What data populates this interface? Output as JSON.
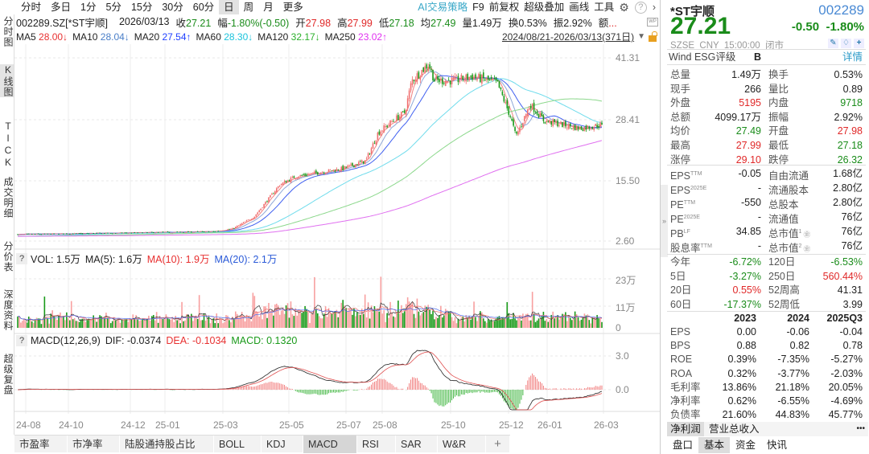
{
  "toolbar": {
    "period_tabs": [
      "分时",
      "多日",
      "1分",
      "5分",
      "15分",
      "30分",
      "60分",
      "日",
      "周",
      "月",
      "更多"
    ],
    "active_tab": "日",
    "ai_strategy": "AI交易策略",
    "f9": "F9",
    "adjust": "前复权",
    "overlay": "超级叠加",
    "draw": "画线",
    "tools": "工具"
  },
  "left_tabs": [
    "分时图",
    "K线图",
    "TICK",
    "成交明细",
    "分价表",
    "深度资料",
    "超级复盘"
  ],
  "left_tabs_active": "K线图",
  "info": {
    "code": "002289.SZ[*ST宇顺]",
    "date": "2026/03/13",
    "items": [
      {
        "label": "收",
        "value": "27.21",
        "color": "green"
      },
      {
        "label": "幅",
        "value": "-1.80%(-0.50)",
        "color": "green"
      },
      {
        "label": "开",
        "value": "27.98",
        "color": "red"
      },
      {
        "label": "高",
        "value": "27.99",
        "color": "red"
      },
      {
        "label": "低",
        "value": "27.18",
        "color": "green"
      },
      {
        "label": "均",
        "value": "27.49",
        "color": "green"
      },
      {
        "label": "量",
        "value": "1.49万",
        "color": ""
      },
      {
        "label": "换",
        "value": "0.53%",
        "color": ""
      },
      {
        "label": "振",
        "value": "2.92%",
        "color": ""
      },
      {
        "label": "额",
        "value": "...",
        "color": "red"
      }
    ]
  },
  "ma": [
    {
      "label": "MA5",
      "value": "28.00↓",
      "color": "#e83030"
    },
    {
      "label": "MA10",
      "value": "28.04↓",
      "color": "#4a7fc8"
    },
    {
      "label": "MA20",
      "value": "27.54↑",
      "color": "#1f3fff"
    },
    {
      "label": "MA60",
      "value": "28.30↓",
      "color": "#1cc4dc"
    },
    {
      "label": "MA120",
      "value": "32.17↓",
      "color": "#2ab02a"
    },
    {
      "label": "MA250",
      "value": "23.02↑",
      "color": "#e030f0"
    }
  ],
  "date_range": "2024/08/21-2026/03/13(371日)",
  "volume_header": {
    "help": "?",
    "items": [
      {
        "text": "VOL: 1.5万",
        "color": "#222"
      },
      {
        "text": "MA(5): 1.6万",
        "color": "#222"
      },
      {
        "text": "MA(10): 1.9万",
        "color": "#e83030"
      },
      {
        "text": "MA(20): 2.1万",
        "color": "#2a5ad8"
      }
    ]
  },
  "macd_header": {
    "help": "?",
    "items": [
      {
        "text": "MACD(12,26,9)",
        "color": "#222"
      },
      {
        "text": "DIF: -0.0374",
        "color": "#222"
      },
      {
        "text": "DEA: -0.1034",
        "color": "#e83030"
      },
      {
        "text": "MACD: 0.1320",
        "color": "#1a9a1a"
      }
    ]
  },
  "chart_data": {
    "type": "candlestick",
    "price_ticks": [
      "41.31",
      "28.41",
      "15.50",
      "2.60"
    ],
    "price_range": [
      2.6,
      41.31
    ],
    "volume_ticks": [
      "23万",
      "11万",
      "0"
    ],
    "macd_ticks": [
      "3.0",
      "0.0"
    ],
    "x_labels": [
      "24-08",
      "24-10",
      "24-12",
      "25-01",
      "25-03",
      "25-05",
      "25-07",
      "25-08",
      "25-10",
      "25-12",
      "26-01",
      "26-03"
    ],
    "price_path": [
      [
        "2024-08-21",
        4.0
      ],
      [
        "2024-12-01",
        4.3
      ],
      [
        "2025-03-01",
        4.6
      ],
      [
        "2025-03-20",
        5.2
      ],
      [
        "2025-04-10",
        7.7
      ],
      [
        "2025-05-05",
        14.5
      ],
      [
        "2025-05-20",
        16.2
      ],
      [
        "2025-06-10",
        17.0
      ],
      [
        "2025-07-05",
        17.9
      ],
      [
        "2025-07-25",
        19.6
      ],
      [
        "2025-08-05",
        25.5
      ],
      [
        "2025-08-20",
        28.0
      ],
      [
        "2025-09-01",
        29.8
      ],
      [
        "2025-09-08",
        36.5
      ],
      [
        "2025-09-25",
        40.0
      ],
      [
        "2025-10-01",
        36.5
      ],
      [
        "2025-10-20",
        36.5
      ],
      [
        "2025-11-05",
        37.4
      ],
      [
        "2025-11-28",
        36.0
      ],
      [
        "2025-12-10",
        28.9
      ],
      [
        "2025-12-15",
        24.7
      ],
      [
        "2025-12-28",
        31.5
      ],
      [
        "2026-01-10",
        28.0
      ],
      [
        "2026-02-15",
        26.4
      ],
      [
        "2026-03-13",
        27.21
      ]
    ],
    "colors": {
      "up": "#f07070",
      "down": "#1a9a1a"
    }
  },
  "bottom_tabs": [
    "市盈率",
    "市净率",
    "陆股通持股占比",
    "BOLL",
    "KDJ",
    "MACD",
    "RSI",
    "SAR",
    "W&R",
    "+"
  ],
  "bottom_tabs_active": "MACD",
  "quote": {
    "name": "*ST宇顺",
    "code": "002289",
    "price": "27.21",
    "change": "-0.50",
    "change_pct": "-1.80%",
    "status": "SZSE  CNY  15:00:00  闭市",
    "esg_label": "Wind ESG评级",
    "esg_value": "B",
    "esg_detail": "详情",
    "stats": [
      [
        "总量",
        "1.49万",
        "",
        "换手",
        "0.53%",
        ""
      ],
      [
        "现手",
        "266",
        "",
        "量比",
        "0.89",
        ""
      ],
      [
        "外盘",
        "5195",
        "red",
        "内盘",
        "9718",
        "green"
      ],
      [
        "总额",
        "4099.17万",
        "",
        "振幅",
        "2.92%",
        ""
      ],
      [
        "均价",
        "27.49",
        "green",
        "开盘",
        "27.98",
        "red"
      ],
      [
        "最高",
        "27.99",
        "red",
        "最低",
        "27.18",
        "green"
      ],
      [
        "涨停",
        "29.10",
        "red",
        "跌停",
        "26.32",
        "green"
      ]
    ],
    "fundamentals": [
      [
        "EPS",
        "TTM",
        "-0.05",
        "自由流通",
        "",
        "1.68亿"
      ],
      [
        "EPS",
        "2025E",
        "-",
        "流通股本",
        "",
        "2.80亿"
      ],
      [
        "PE",
        "TTM",
        "-550",
        "总股本",
        "",
        "2.80亿"
      ],
      [
        "PE",
        "2025E",
        "-",
        "流通值",
        "",
        "76亿"
      ],
      [
        "PB",
        "LF",
        "34.85",
        "总市值",
        "1",
        "76亿"
      ],
      [
        "股息率",
        "TTM",
        "-",
        "总市值",
        "2",
        "76亿"
      ]
    ],
    "returns": [
      [
        "今年",
        "-6.72%",
        "green",
        "120日",
        "-6.53%",
        "green"
      ],
      [
        "5日",
        "-3.27%",
        "green",
        "250日",
        "560.44%",
        "red"
      ],
      [
        "20日",
        "0.55%",
        "red",
        "52周高",
        "41.31",
        ""
      ],
      [
        "60日",
        "-17.37%",
        "green",
        "52周低",
        "3.99",
        ""
      ]
    ],
    "fin_headers": [
      "2023",
      "2024",
      "2025Q3"
    ],
    "fin_rows": [
      [
        "EPS",
        "0.00",
        "-0.06",
        "-0.04"
      ],
      [
        "BPS",
        "0.88",
        "0.82",
        "0.78"
      ],
      [
        "ROE",
        "0.39%",
        "-7.35%",
        "-5.27%"
      ],
      [
        "ROA",
        "0.32%",
        "-3.77%",
        "-2.03%"
      ],
      [
        "毛利率",
        "13.86%",
        "21.18%",
        "20.05%"
      ],
      [
        "净利率",
        "0.62%",
        "-6.55%",
        "-4.69%"
      ],
      [
        "负债率",
        "21.60%",
        "44.83%",
        "45.77%"
      ]
    ],
    "fin_tabs": [
      "净利润",
      "营业总收入"
    ],
    "fin_more": "•••",
    "panel_tabs": [
      "盘口",
      "基本",
      "资金",
      "快讯"
    ],
    "panel_tab_active": "基本"
  }
}
